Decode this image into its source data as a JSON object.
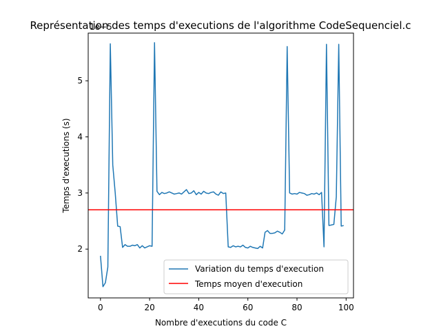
{
  "chart_data": {
    "type": "line",
    "title": "Représentation des temps d'executions de l'algorithme CodeSequenciel.c",
    "xlabel": "Nombre d'executions du code C",
    "ylabel": "Temps d'executions (s)",
    "y_offset_label": "1e−5",
    "xlim": [
      -5,
      103
    ],
    "ylim": [
      1.13e-05,
      5.85e-05
    ],
    "xticks": [
      0,
      20,
      40,
      60,
      80,
      100
    ],
    "yticks": [
      2e-05,
      3e-05,
      4e-05,
      5e-05
    ],
    "xtick_labels": [
      "0",
      "20",
      "40",
      "60",
      "80",
      "100"
    ],
    "ytick_labels": [
      "2",
      "3",
      "4",
      "5"
    ],
    "grid": false,
    "legend_position": "lower right",
    "series": [
      {
        "name": "Variation du temps d'execution",
        "color": "#1f77b4",
        "x": [
          0,
          1,
          2,
          3,
          4,
          5,
          6,
          7,
          8,
          9,
          10,
          11,
          12,
          13,
          14,
          15,
          16,
          17,
          18,
          19,
          20,
          21,
          22,
          23,
          24,
          25,
          26,
          27,
          28,
          29,
          30,
          31,
          32,
          33,
          34,
          35,
          36,
          37,
          38,
          39,
          40,
          41,
          42,
          43,
          44,
          45,
          46,
          47,
          48,
          49,
          50,
          51,
          52,
          53,
          54,
          55,
          56,
          57,
          58,
          59,
          60,
          61,
          62,
          63,
          64,
          65,
          66,
          67,
          68,
          69,
          70,
          71,
          72,
          73,
          74,
          75,
          76,
          77,
          78,
          79,
          80,
          81,
          82,
          83,
          84,
          85,
          86,
          87,
          88,
          89,
          90,
          91,
          92,
          93,
          94,
          95,
          96,
          97,
          98,
          99
        ],
        "y": [
          1.88e-05,
          1.33e-05,
          1.4e-05,
          1.68e-05,
          5.66e-05,
          3.5e-05,
          3e-05,
          2.41e-05,
          2.4e-05,
          2.03e-05,
          2.08e-05,
          2.05e-05,
          2.05e-05,
          2.07e-05,
          2.06e-05,
          2.08e-05,
          2.02e-05,
          2.06e-05,
          2.02e-05,
          2.04e-05,
          2.06e-05,
          2.05e-05,
          5.68e-05,
          3.03e-05,
          2.97e-05,
          3.01e-05,
          2.99e-05,
          3e-05,
          3.02e-05,
          3e-05,
          2.98e-05,
          2.99e-05,
          3e-05,
          2.98e-05,
          3.02e-05,
          3.06e-05,
          2.99e-05,
          3e-05,
          3.04e-05,
          2.97e-05,
          3.01e-05,
          2.98e-05,
          3.03e-05,
          3e-05,
          2.99e-05,
          3.01e-05,
          3.02e-05,
          2.98e-05,
          2.96e-05,
          3.02e-05,
          2.99e-05,
          3e-05,
          2.04e-05,
          2.03e-05,
          2.06e-05,
          2.04e-05,
          2.05e-05,
          2.04e-05,
          2.07e-05,
          2.03e-05,
          2.02e-05,
          2.05e-05,
          2.03e-05,
          2.02e-05,
          2.01e-05,
          2.05e-05,
          2.02e-05,
          2.3e-05,
          2.33e-05,
          2.28e-05,
          2.28e-05,
          2.29e-05,
          2.32e-05,
          2.3e-05,
          2.27e-05,
          2.34e-05,
          5.61e-05,
          3e-05,
          2.98e-05,
          2.99e-05,
          2.98e-05,
          3.01e-05,
          3e-05,
          2.99e-05,
          2.96e-05,
          2.97e-05,
          2.99e-05,
          2.98e-05,
          3e-05,
          2.97e-05,
          3.01e-05,
          2.04e-05,
          5.65e-05,
          2.42e-05,
          2.43e-05,
          2.44e-05,
          2.93e-05,
          5.65e-05,
          2.41e-05,
          2.42e-05
        ]
      },
      {
        "name": "Temps moyen d'execution",
        "color": "#ff0000",
        "type": "hline",
        "y": 2.7e-05
      }
    ]
  }
}
